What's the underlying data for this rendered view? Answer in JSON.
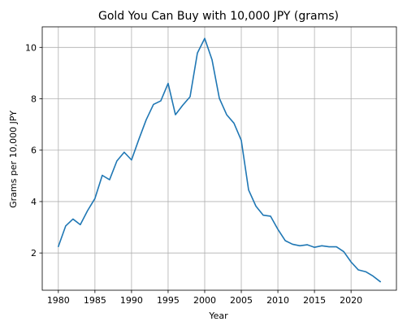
{
  "chart_data": {
    "type": "line",
    "title": "Gold You Can Buy with 10,000 JPY (grams)",
    "xlabel": "Year",
    "ylabel": "Grams per 10,000 JPY",
    "xlim": [
      1977.8,
      2026.2
    ],
    "ylim": [
      0.55,
      10.8
    ],
    "xticks": [
      1980,
      1985,
      1990,
      1995,
      2000,
      2005,
      2010,
      2015,
      2020
    ],
    "yticks": [
      2,
      4,
      6,
      8,
      10
    ],
    "grid": true,
    "series": [
      {
        "color": "#1f77b4",
        "x": [
          1980,
          1981,
          1982,
          1983,
          1984,
          1985,
          1986,
          1987,
          1988,
          1989,
          1990,
          1991,
          1992,
          1993,
          1994,
          1995,
          1996,
          1997,
          1998,
          1999,
          2000,
          2001,
          2002,
          2003,
          2004,
          2005,
          2006,
          2007,
          2008,
          2009,
          2010,
          2011,
          2012,
          2013,
          2014,
          2015,
          2016,
          2017,
          2018,
          2019,
          2020,
          2021,
          2022,
          2023,
          2024
        ],
        "y": [
          2.25,
          3.05,
          3.32,
          3.1,
          3.65,
          4.12,
          5.02,
          4.85,
          5.58,
          5.92,
          5.62,
          6.42,
          7.18,
          7.78,
          7.92,
          8.6,
          7.38,
          7.75,
          8.08,
          9.78,
          10.35,
          9.52,
          8.02,
          7.38,
          7.05,
          6.38,
          4.45,
          3.82,
          3.47,
          3.43,
          2.92,
          2.48,
          2.34,
          2.28,
          2.32,
          2.22,
          2.28,
          2.24,
          2.24,
          2.05,
          1.65,
          1.34,
          1.27,
          1.1,
          0.88
        ]
      }
    ]
  }
}
